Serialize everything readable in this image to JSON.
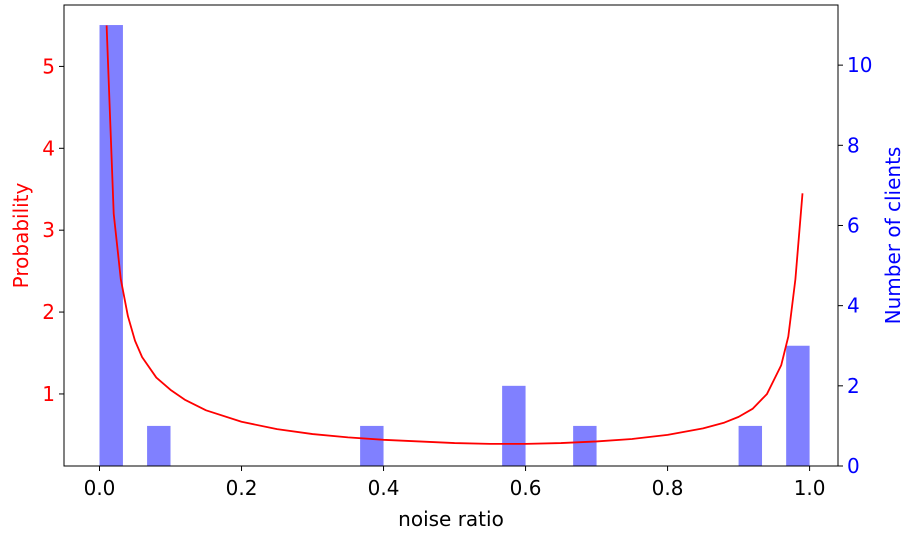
{
  "chart_data": {
    "type": "bar+line",
    "xlabel": "noise ratio",
    "y1label": "Probability",
    "y2label": "Number of clients",
    "xlim": [
      -0.05,
      1.04
    ],
    "y1lim": [
      0.12,
      5.75
    ],
    "y2lim": [
      0,
      11.5
    ],
    "grid": false,
    "x_ticks": [
      {
        "value": 0.0,
        "label": "0.0"
      },
      {
        "value": 0.2,
        "label": "0.2"
      },
      {
        "value": 0.4,
        "label": "0.4"
      },
      {
        "value": 0.6,
        "label": "0.6"
      },
      {
        "value": 0.8,
        "label": "0.8"
      },
      {
        "value": 1.0,
        "label": "1.0"
      }
    ],
    "y1_ticks": [
      {
        "value": 1,
        "label": "1"
      },
      {
        "value": 2,
        "label": "2"
      },
      {
        "value": 3,
        "label": "3"
      },
      {
        "value": 4,
        "label": "4"
      },
      {
        "value": 5,
        "label": "5"
      }
    ],
    "y2_ticks": [
      {
        "value": 0,
        "label": "0"
      },
      {
        "value": 2,
        "label": "2"
      },
      {
        "value": 4,
        "label": "4"
      },
      {
        "value": 6,
        "label": "6"
      },
      {
        "value": 8,
        "label": "8"
      },
      {
        "value": 10,
        "label": "10"
      }
    ],
    "histogram": {
      "axis": "right",
      "color": "#8080ff",
      "bins": [
        {
          "x0": 0.0,
          "x1": 0.033,
          "count": 11
        },
        {
          "x0": 0.067,
          "x1": 0.1,
          "count": 1
        },
        {
          "x0": 0.367,
          "x1": 0.4,
          "count": 1
        },
        {
          "x0": 0.567,
          "x1": 0.6,
          "count": 2
        },
        {
          "x0": 0.667,
          "x1": 0.7,
          "count": 1
        },
        {
          "x0": 0.9,
          "x1": 0.933,
          "count": 1
        },
        {
          "x0": 0.967,
          "x1": 1.0,
          "count": 3
        }
      ]
    },
    "density_line": {
      "axis": "left",
      "color": "#ff0000",
      "x": [
        0.01,
        0.02,
        0.03,
        0.04,
        0.05,
        0.06,
        0.08,
        0.1,
        0.12,
        0.15,
        0.2,
        0.25,
        0.3,
        0.35,
        0.4,
        0.45,
        0.5,
        0.55,
        0.6,
        0.65,
        0.7,
        0.75,
        0.8,
        0.85,
        0.88,
        0.9,
        0.92,
        0.94,
        0.96,
        0.97,
        0.98,
        0.99
      ],
      "y": [
        5.5,
        3.2,
        2.4,
        1.95,
        1.65,
        1.45,
        1.2,
        1.05,
        0.93,
        0.8,
        0.66,
        0.57,
        0.51,
        0.47,
        0.44,
        0.42,
        0.4,
        0.39,
        0.39,
        0.4,
        0.42,
        0.45,
        0.5,
        0.58,
        0.65,
        0.72,
        0.82,
        1.0,
        1.35,
        1.7,
        2.4,
        3.45
      ]
    }
  }
}
